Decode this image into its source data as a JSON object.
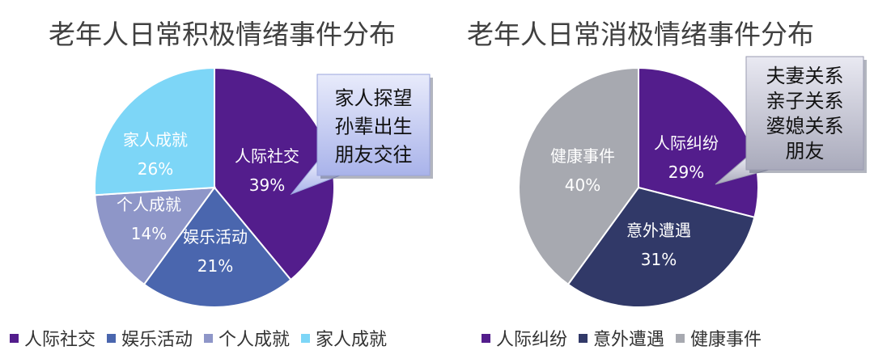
{
  "chart_data": [
    {
      "type": "pie",
      "title": "老年人日常积极情绪事件分布",
      "slices": [
        {
          "name": "人际社交",
          "value": 39,
          "label": "39%",
          "color": "#531d8c"
        },
        {
          "name": "娱乐活动",
          "value": 21,
          "label": "21%",
          "color": "#4a66ae"
        },
        {
          "name": "个人成就",
          "value": 14,
          "label": "14%",
          "color": "#8e96c8"
        },
        {
          "name": "家人成就",
          "value": 26,
          "label": "26%",
          "color": "#7dd6f7"
        }
      ],
      "callout": [
        "家人探望",
        "孙辈出生",
        "朋友交往"
      ],
      "legend_position": "bottom"
    },
    {
      "type": "pie",
      "title": "老年人日常消极情绪事件分布",
      "slices": [
        {
          "name": "人际纠纷",
          "value": 29,
          "label": "29%",
          "color": "#531d8c"
        },
        {
          "name": "意外遭遇",
          "value": 31,
          "label": "31%",
          "color": "#313968"
        },
        {
          "name": "健康事件",
          "value": 40,
          "label": "40%",
          "color": "#a7a9b0"
        }
      ],
      "callout": [
        "夫妻关系",
        "亲子关系",
        "婆媳关系",
        "朋友"
      ],
      "legend_position": "bottom"
    }
  ]
}
